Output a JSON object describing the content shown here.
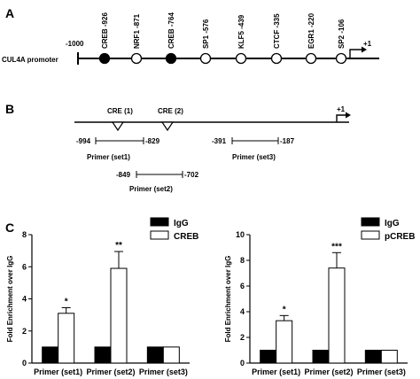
{
  "panels": {
    "a": {
      "letter": "A",
      "promoter_label": "CUL4A promoter",
      "start_label": "-1000",
      "tss_label": "+1",
      "sites": [
        {
          "label": "CREB -926",
          "filled": true
        },
        {
          "label": "NRF1 -871",
          "filled": false
        },
        {
          "label": "CREB -764",
          "filled": true
        },
        {
          "label": "SP1 -576",
          "filled": false
        },
        {
          "label": "KLF5 -439",
          "filled": false
        },
        {
          "label": "CTCF -335",
          "filled": false
        },
        {
          "label": "EGR1 -220",
          "filled": false
        },
        {
          "label": "SP2 -106",
          "filled": false
        }
      ]
    },
    "b": {
      "letter": "B",
      "tss_label": "+1",
      "cre_sites": [
        "CRE (1)",
        "CRE (2)"
      ],
      "primers": [
        {
          "name": "Primer  (set1)",
          "start": "-994",
          "end": "-829"
        },
        {
          "name": "Primer  (set2)",
          "start": "-849",
          "end": "-702"
        },
        {
          "name": "Primer  (set3)",
          "start": "-391",
          "end": "-187"
        }
      ]
    },
    "c": {
      "letter": "C"
    }
  },
  "chart_data": [
    {
      "type": "bar",
      "ylabel": "Fold Enrichment over IgG",
      "ylim": [
        0,
        8
      ],
      "yticks": [
        "0",
        "2",
        "4",
        "6",
        "8"
      ],
      "categories": [
        "Primer (set1)",
        "Primer (set2)",
        "Primer (set3)"
      ],
      "series": [
        {
          "name": "IgG",
          "values": [
            1.0,
            1.0,
            1.0
          ],
          "errors": [
            0,
            0,
            0
          ],
          "color": "#000000"
        },
        {
          "name": "CREB",
          "values": [
            3.1,
            5.9,
            1.0
          ],
          "errors": [
            0.35,
            1.05,
            0
          ],
          "color": "#ffffff"
        }
      ],
      "significance": [
        "*",
        "**",
        ""
      ],
      "legend_position": "top-right"
    },
    {
      "type": "bar",
      "ylabel": "Fold Enrichment over IgG",
      "ylim": [
        0,
        10
      ],
      "yticks": [
        "0",
        "2",
        "4",
        "6",
        "8",
        "10"
      ],
      "categories": [
        "Primer (set1)",
        "Primer (set2)",
        "Primer (set3)"
      ],
      "series": [
        {
          "name": "IgG",
          "values": [
            1.0,
            1.0,
            1.0
          ],
          "errors": [
            0,
            0,
            0
          ],
          "color": "#000000"
        },
        {
          "name": "pCREB",
          "values": [
            3.3,
            7.4,
            1.0
          ],
          "errors": [
            0.4,
            1.2,
            0
          ],
          "color": "#ffffff"
        }
      ],
      "significance": [
        "*",
        "***",
        ""
      ],
      "legend_position": "top-right"
    }
  ]
}
